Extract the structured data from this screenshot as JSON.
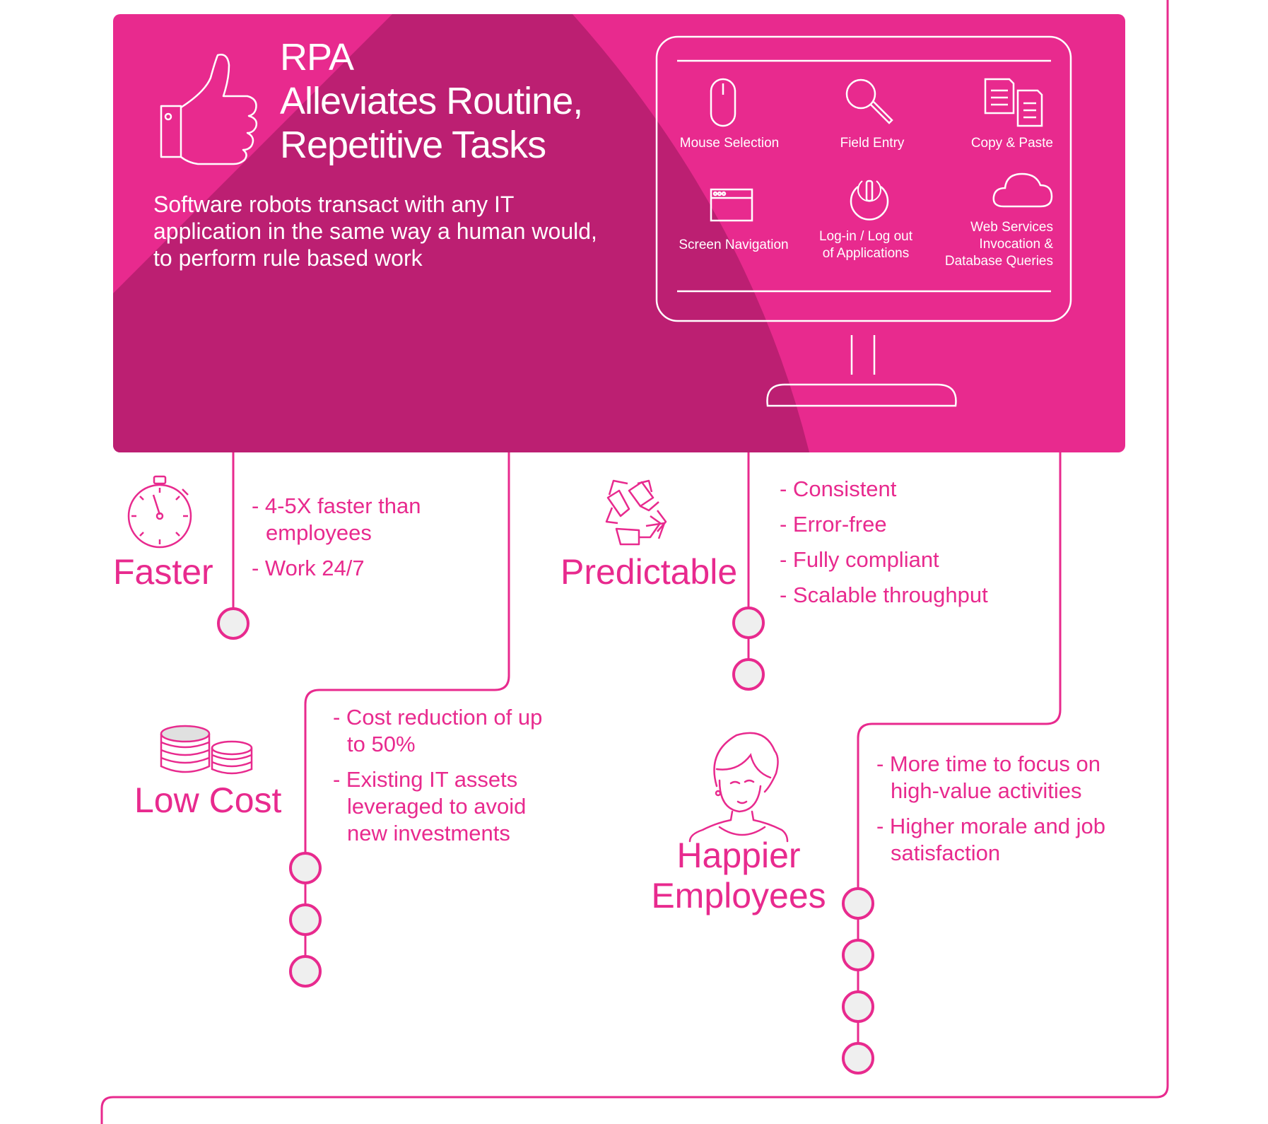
{
  "colors": {
    "magenta": "#e82a8e",
    "magenta_dark": "#bc1f72",
    "node_fill": "#efefef",
    "white": "#ffffff"
  },
  "hero": {
    "title_lines": [
      "RPA",
      "Alleviates Routine,",
      "Repetitive Tasks"
    ],
    "description": "Software robots transact with any IT application in the same way a human would, to perform rule based work",
    "icon": "thumbs-up-icon"
  },
  "monitor": {
    "tasks": [
      {
        "label": "Mouse Selection",
        "icon": "mouse-icon"
      },
      {
        "label": "Field Entry",
        "icon": "magnifier-icon"
      },
      {
        "label": "Copy & Paste",
        "icon": "documents-icon"
      },
      {
        "label": "Screen Navigation",
        "icon": "browser-window-icon"
      },
      {
        "label": "Log-in / Log out of Applications",
        "lines": [
          "Log-in / Log out",
          "of Applications"
        ],
        "icon": "power-icon"
      },
      {
        "label": "Web Services Invocation & Database Queries",
        "lines": [
          "Web Services",
          "Invocation &",
          "Database Queries"
        ],
        "icon": "cloud-icon"
      }
    ]
  },
  "benefits": {
    "faster": {
      "title": "Faster",
      "icon": "stopwatch-icon",
      "bullets": [
        "- 4-5X faster than employees",
        "- Work 24/7"
      ]
    },
    "predictable": {
      "title": "Predictable",
      "icon": "recycle-icon",
      "bullets": [
        "- Consistent",
        "- Error-free",
        "- Fully compliant",
        "- Scalable throughput"
      ]
    },
    "low_cost": {
      "title": "Low Cost",
      "icon": "coins-icon",
      "bullets": [
        "- Cost reduction of up to 50%",
        "- Existing IT assets leveraged to avoid new investments"
      ]
    },
    "happier": {
      "title_lines": [
        "Happier",
        "Employees"
      ],
      "icon": "person-icon",
      "bullets": [
        "- More time to focus on high-value activities",
        "- Higher morale and job satisfaction"
      ]
    }
  }
}
